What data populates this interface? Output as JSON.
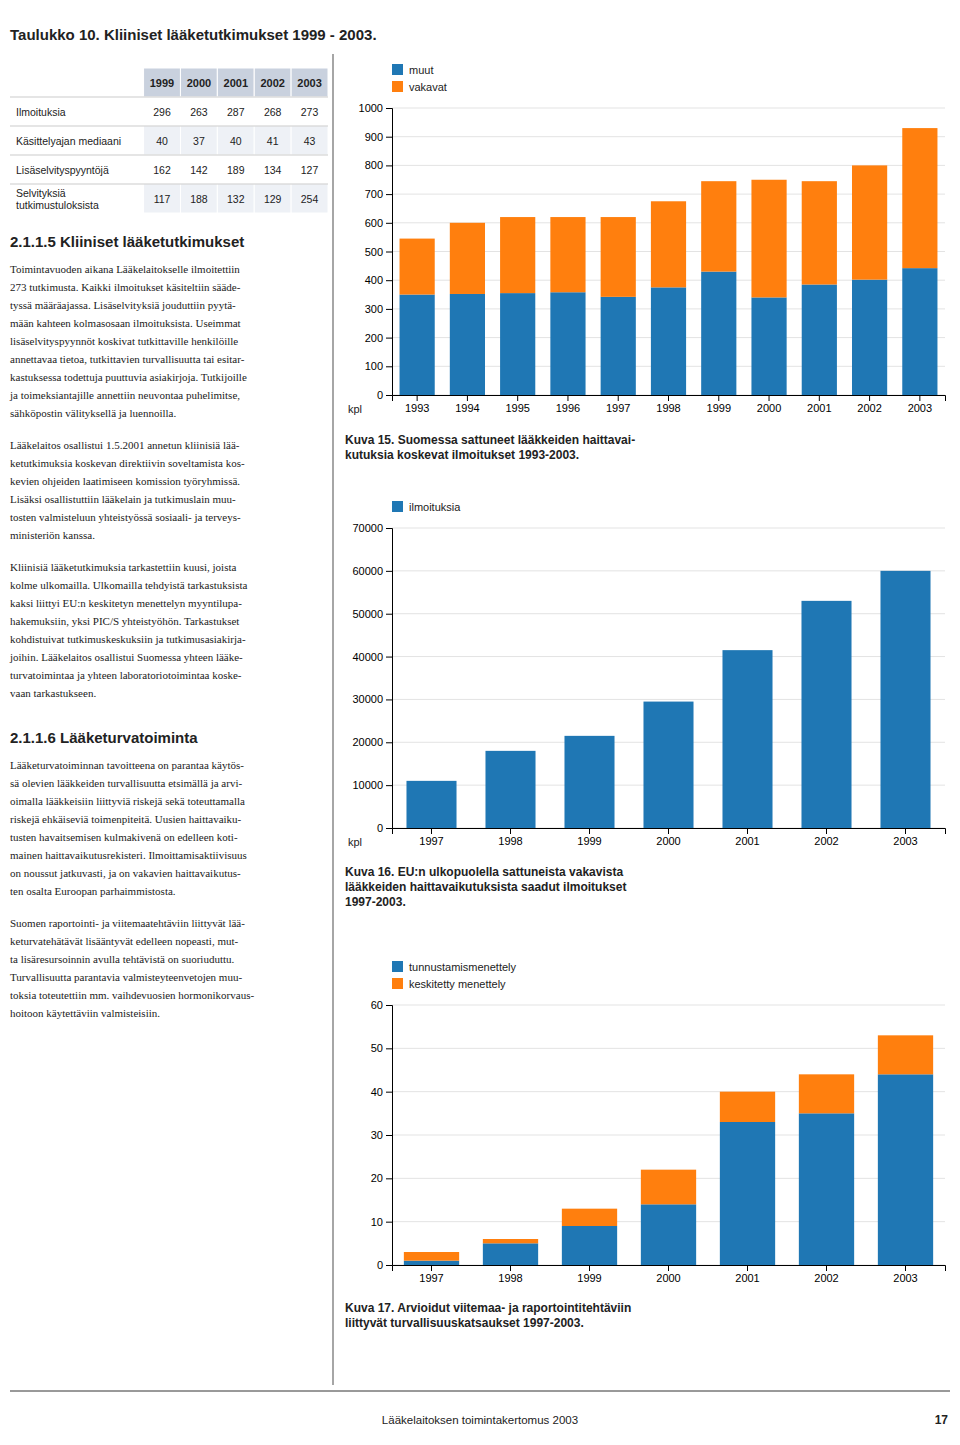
{
  "title": "Taulukko 10. Kliiniset lääketutkimukset 1999 - 2003.",
  "table": {
    "headers": [
      "1999",
      "2000",
      "2001",
      "2002",
      "2003"
    ],
    "rows": [
      {
        "label": "Ilmoituksia",
        "values": [
          296,
          263,
          287,
          268,
          273
        ]
      },
      {
        "label": "Käsittelyajan mediaani",
        "values": [
          40,
          37,
          40,
          41,
          43
        ]
      },
      {
        "label": "Lisäselvityspyyntöjä",
        "values": [
          162,
          142,
          189,
          134,
          127
        ]
      },
      {
        "label": "Selvityksiä\ntutkimustuloksista",
        "values": [
          117,
          188,
          132,
          129,
          254
        ]
      }
    ]
  },
  "sections": [
    {
      "title": "2.1.1.5 Kliiniset lääketutkimukset",
      "paragraphs": [
        "Toimintavuoden aikana Lääkelaitokselle ilmoitettiin\n273 tutkimusta. Kaikki ilmoitukset käsiteltiin sääde-\ntyssä määräajassa. Lisäselvityksiä jouduttiin pyytä-\nmään kahteen kolmasosaan ilmoituksista. Useimmat\nlisäselvityspyynnöt koskivat tutkittaville henkilöille\nannettavaa tietoa, tutkittavien turvallisuutta tai esitar-\nkastuksessa todettuja puuttuvia asiakirjoja. Tutkijoille\nja toimeksiantajille annettiin neuvontaa puhelimitse,\nsähköpostin välityksellä ja luennoilla.",
        "Lääkelaitos osallistui 1.5.2001 annetun kliinisiä lää-\nketutkimuksia koskevan direktiivin soveltamista kos-\nkevien ohjeiden laatimiseen komission työryhmissä.\nLisäksi osallistuttiin lääkelain ja tutkimuslain muu-\ntosten valmisteluun yhteistyössä sosiaali- ja terveys-\nministeriön kanssa.",
        "Kliinisiä lääketutkimuksia tarkastettiin kuusi, joista\nkolme ulkomailla. Ulkomailla tehdyistä tarkastuksista\nkaksi liittyi EU:n keskitetyn menettelyn myyntilupa-\nhakemuksiin, yksi PIC/S yhteistyöhön. Tarkastukset\nkohdistuivat tutkimuskeskuksiin ja tutkimusasiakirja-\njoihin. Lääkelaitos osallistui Suomessa yhteen lääke-\nturvatoimintaa ja yhteen laboratoriotoimintaa koske-\nvaan tarkastukseen."
      ]
    },
    {
      "title": "2.1.1.6 Lääketurvatoiminta",
      "paragraphs": [
        "Lääketurvatoiminnan tavoitteena on parantaa käytös-\nsä olevien lääkkeiden turvallisuutta etsimällä ja arvi-\noimalla lääkkeisiin liittyviä riskejä sekä toteuttamalla\nriskejä ehkäiseviä toimenpiteitä. Uusien haittavaiku-\ntusten havaitsemisen kulmakivenä on edelleen koti-\nmainen haittavaikutusrekisteri. Ilmoittamisaktiivisuus\non noussut jatkuvasti, ja on vakavien haittavaikutus-\nten osalta Euroopan parhaimmistosta.",
        "Suomen raportointi- ja viitemaatehtäviin liittyvät lää-\nketurvatehätävät lisääntyvät edelleen nopeasti, mut-\nta lisäresursoinnin avulla tehtävistä on suoriuduttu.\nTurvallisuutta parantavia valmisteyteenvetojen muu-\ntoksia toteutettiin mm. vaihdevuosien hormonikorvaus-\nhoitoon käytettäviin valmisteisiin."
      ]
    }
  ],
  "chart_data": [
    {
      "type": "bar",
      "title": "Kuva 15. Suomessa sattuneet lääkkeiden haittavai-\nkutuksia koskevat ilmoitukset 1993-2003.",
      "categories": [
        "1993",
        "1994",
        "1995",
        "1996",
        "1997",
        "1998",
        "1999",
        "2000",
        "2001",
        "2002",
        "2003"
      ],
      "series": [
        {
          "name": "muut",
          "values": [
            350,
            352,
            355,
            358,
            342,
            375,
            430,
            340,
            385,
            402,
            442
          ]
        },
        {
          "name": "vakavat",
          "values": [
            195,
            248,
            265,
            262,
            278,
            300,
            315,
            410,
            360,
            398,
            488
          ]
        }
      ],
      "stacked": true,
      "ylabel": "kpl",
      "ylim": [
        0,
        1000
      ],
      "yticks": [
        0,
        100,
        200,
        300,
        400,
        500,
        600,
        700,
        800,
        900,
        1000
      ],
      "grid": true,
      "legend": "top"
    },
    {
      "type": "bar",
      "title": "Kuva 16. EU:n ulkopuolella sattuneista vakavista\nlääkkeiden haittavaikutuksista saadut ilmoitukset\n1997-2003.",
      "categories": [
        "1997",
        "1998",
        "1999",
        "2000",
        "2001",
        "2002",
        "2003"
      ],
      "series": [
        {
          "name": "ilmoituksia",
          "values": [
            11000,
            18000,
            21500,
            29500,
            41500,
            53000,
            60000
          ]
        }
      ],
      "ylabel": "kpl",
      "ylim": [
        0,
        70000
      ],
      "yticks": [
        0,
        10000,
        20000,
        30000,
        40000,
        50000,
        60000,
        70000
      ],
      "grid": true,
      "legend": "top"
    },
    {
      "type": "bar",
      "title": "Kuva 17. Arvioidut viitemaa- ja raportointitehtäviin\nliittyvät turvallisuuskatsaukset 1997-2003.",
      "categories": [
        "1997",
        "1998",
        "1999",
        "2000",
        "2001",
        "2002",
        "2003"
      ],
      "series": [
        {
          "name": "tunnustamismenettely",
          "values": [
            1,
            5,
            9,
            14,
            33,
            35,
            44
          ]
        },
        {
          "name": "keskitetty menettely",
          "values": [
            2,
            1,
            4,
            8,
            7,
            9,
            9
          ]
        }
      ],
      "stacked": true,
      "ylim": [
        0,
        60
      ],
      "yticks": [
        0,
        10,
        20,
        30,
        40,
        50,
        60
      ],
      "grid": true,
      "legend": "top"
    }
  ],
  "footer": "Lääkelaitoksen toimintakertomus 2003",
  "page_number": "17"
}
